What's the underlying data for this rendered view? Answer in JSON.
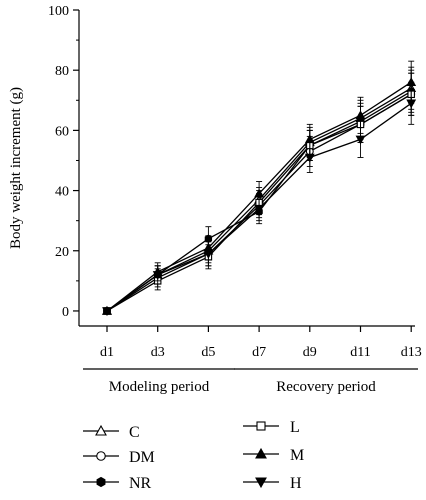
{
  "chart_data": {
    "type": "line",
    "ylabel": "Body weight increment (g)",
    "xlabel": "",
    "categories": [
      "d1",
      "d3",
      "d5",
      "d7",
      "d9",
      "d11",
      "d13"
    ],
    "yticks": [
      0,
      20,
      40,
      60,
      80,
      100
    ],
    "ylim": [
      -5,
      100
    ],
    "grid": false,
    "legend_position": "bottom",
    "periods": [
      {
        "label": "Modeling period",
        "from": "d1",
        "to": "d5"
      },
      {
        "label": "Recovery period",
        "from": "d7",
        "to": "d13"
      }
    ],
    "series": [
      {
        "name": "C",
        "marker": "triangle-up-open",
        "values": [
          0,
          12,
          20,
          37,
          56,
          64,
          74
        ],
        "errors": [
          0,
          3,
          4,
          4,
          5,
          6,
          7
        ]
      },
      {
        "name": "DM",
        "marker": "circle-open",
        "values": [
          0,
          11,
          19,
          35,
          53,
          62,
          72
        ],
        "errors": [
          0,
          3,
          4,
          4,
          5,
          6,
          7
        ]
      },
      {
        "name": "NR",
        "marker": "hexagon-filled",
        "values": [
          0,
          12,
          24,
          33,
          55,
          63,
          73
        ],
        "errors": [
          0,
          3,
          4,
          4,
          5,
          6,
          7
        ]
      },
      {
        "name": "L",
        "marker": "square-open",
        "values": [
          0,
          10,
          18,
          36,
          55,
          62,
          72
        ],
        "errors": [
          0,
          3,
          4,
          4,
          5,
          6,
          7
        ]
      },
      {
        "name": "M",
        "marker": "triangle-up-filled",
        "values": [
          0,
          13,
          21,
          39,
          57,
          65,
          76
        ],
        "errors": [
          0,
          3,
          4,
          4,
          5,
          6,
          7
        ]
      },
      {
        "name": "H",
        "marker": "triangle-down-filled",
        "values": [
          0,
          12,
          19,
          34,
          51,
          57,
          69
        ],
        "errors": [
          0,
          3,
          4,
          4,
          5,
          6,
          7
        ]
      }
    ]
  }
}
